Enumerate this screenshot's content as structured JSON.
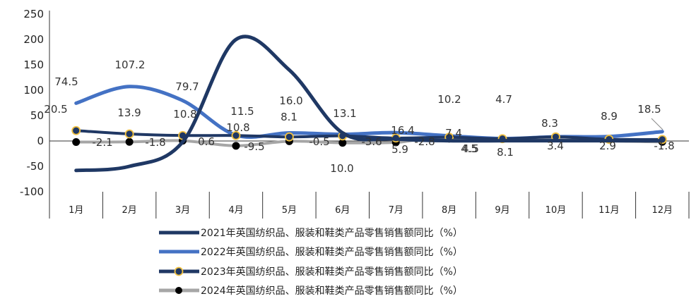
{
  "chart_data": {
    "type": "line",
    "categories": [
      "1月",
      "2月",
      "3月",
      "4月",
      "5月",
      "6月",
      "7月",
      "8月",
      "9月",
      "10月",
      "11月",
      "12月"
    ],
    "ylim": [
      -100,
      250
    ],
    "yticks": [
      250,
      200,
      150,
      100,
      50,
      0,
      -50,
      -100
    ],
    "grid": false,
    "legend_position": "bottom",
    "series": [
      {
        "name": "2021年英国纺织品、服装和鞋类产品零售销售额同比（%）",
        "color": "#1f3864",
        "marker": "none",
        "values": [
          -58.0,
          -50.0,
          -2.0,
          200.0,
          140.0,
          16.0,
          4.0,
          0.5,
          0.5,
          0.5,
          0.5,
          0.5
        ],
        "labels": []
      },
      {
        "name": "2022年英国纺织品、服装和鞋类产品零售销售额同比（%）",
        "color": "#4472c4",
        "marker": "none",
        "values": [
          74.5,
          107.2,
          79.7,
          11.5,
          16.0,
          13.1,
          16.4,
          10.2,
          4.7,
          8.3,
          8.9,
          18.5
        ],
        "labels": [
          "74.5",
          "107.2",
          "79.7",
          "11.5",
          "16.0",
          "13.1",
          "16.4",
          "10.2",
          "4.7",
          "8.3",
          "8.9",
          "18.5"
        ]
      },
      {
        "name": "2023年英国纺织品、服装和鞋类产品零售销售额同比（%）",
        "color": "#203864",
        "marker": "circle-gold",
        "values": [
          20.5,
          13.9,
          10.8,
          10.8,
          8.1,
          10.0,
          5.9,
          7.4,
          4.5,
          8.1,
          3.4,
          2.9
        ],
        "labels": [
          "20.5",
          "13.9",
          "10.8",
          "10.8",
          "8.1",
          "10.0",
          "5.9",
          "7.4",
          "4.5",
          "8.1",
          "3.4",
          "2.9"
        ]
      },
      {
        "name": "2024年英国纺织品、服装和鞋类产品零售销售额同比（%）",
        "color": "#a6a6a6",
        "marker": "circle-black",
        "values": [
          -2.1,
          -1.8,
          0.6,
          -9.5,
          -0.5,
          -3.6,
          -2.8,
          4.5,
          null,
          null,
          null,
          -1.8
        ],
        "labels": [
          "-2.1",
          "-1.8",
          "0.6",
          "-9.5",
          "-0.5",
          "-3.6",
          "-2.8",
          "4.5",
          "",
          "",
          "",
          "-1.8"
        ]
      }
    ]
  }
}
